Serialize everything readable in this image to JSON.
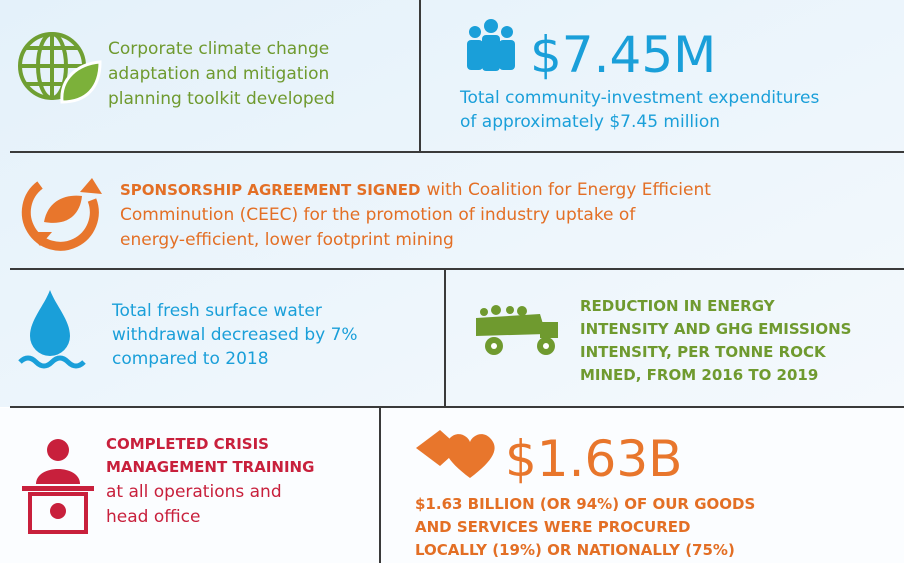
{
  "panels": [
    {
      "lines": [
        "Corporate climate change",
        "adaptation and mitigation",
        "planning toolkit developed"
      ]
    },
    {
      "headline": "$7.45M",
      "lines": [
        "Total community-investment expenditures",
        "of approximately $7.45 million"
      ]
    },
    {
      "bold": "SPONSORSHIP AGREEMENT SIGNED",
      "lines": [
        "with Coalition for Energy Efficient",
        "Comminution (CEEC) for the promotion of industry uptake of",
        "energy-efficient, lower footprint mining"
      ]
    },
    {
      "lines": [
        "Total fresh surface water",
        "withdrawal decreased by 7%",
        "compared to 2018"
      ]
    },
    {
      "lines": [
        "REDUCTION IN ENERGY",
        "INTENSITY AND GHG EMISSIONS",
        "INTENSITY, PER TONNE ROCK",
        "MINED, FROM 2016 TO 2019"
      ]
    },
    {
      "bold_lines": [
        "COMPLETED CRISIS",
        "MANAGEMENT TRAINING"
      ],
      "lines": [
        "at all operations and",
        "head office"
      ]
    },
    {
      "headline": "$1.63B",
      "lines": [
        "$1.63 BILLION (OR 94%) OF OUR GOODS",
        "AND SERVICES WERE PROCURED",
        "LOCALLY (19%) OR NATIONALLY (75%)"
      ]
    }
  ]
}
